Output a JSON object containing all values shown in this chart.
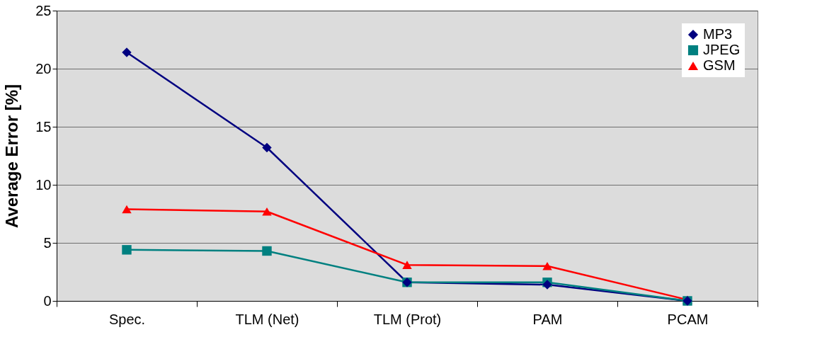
{
  "chart_data": {
    "type": "line",
    "ylabel": "Average Error [%]",
    "categories": [
      "Spec.",
      "TLM (Net)",
      "TLM (Prot)",
      "PAM",
      "PCAM"
    ],
    "series": [
      {
        "name": "MP3",
        "color": "#000080",
        "marker": "diamond",
        "values": [
          21.4,
          13.2,
          1.6,
          1.4,
          0
        ]
      },
      {
        "name": "JPEG",
        "color": "#008080",
        "marker": "square",
        "values": [
          4.4,
          4.3,
          1.6,
          1.6,
          0
        ]
      },
      {
        "name": "GSM",
        "color": "#ff0000",
        "marker": "triangle",
        "values": [
          7.9,
          7.7,
          3.1,
          3.0,
          0.1
        ]
      }
    ],
    "ylim": [
      0,
      25
    ],
    "yticks": [
      0,
      5,
      10,
      15,
      20,
      25
    ],
    "grid": "y",
    "legend": "top right",
    "line_style": "solid"
  }
}
